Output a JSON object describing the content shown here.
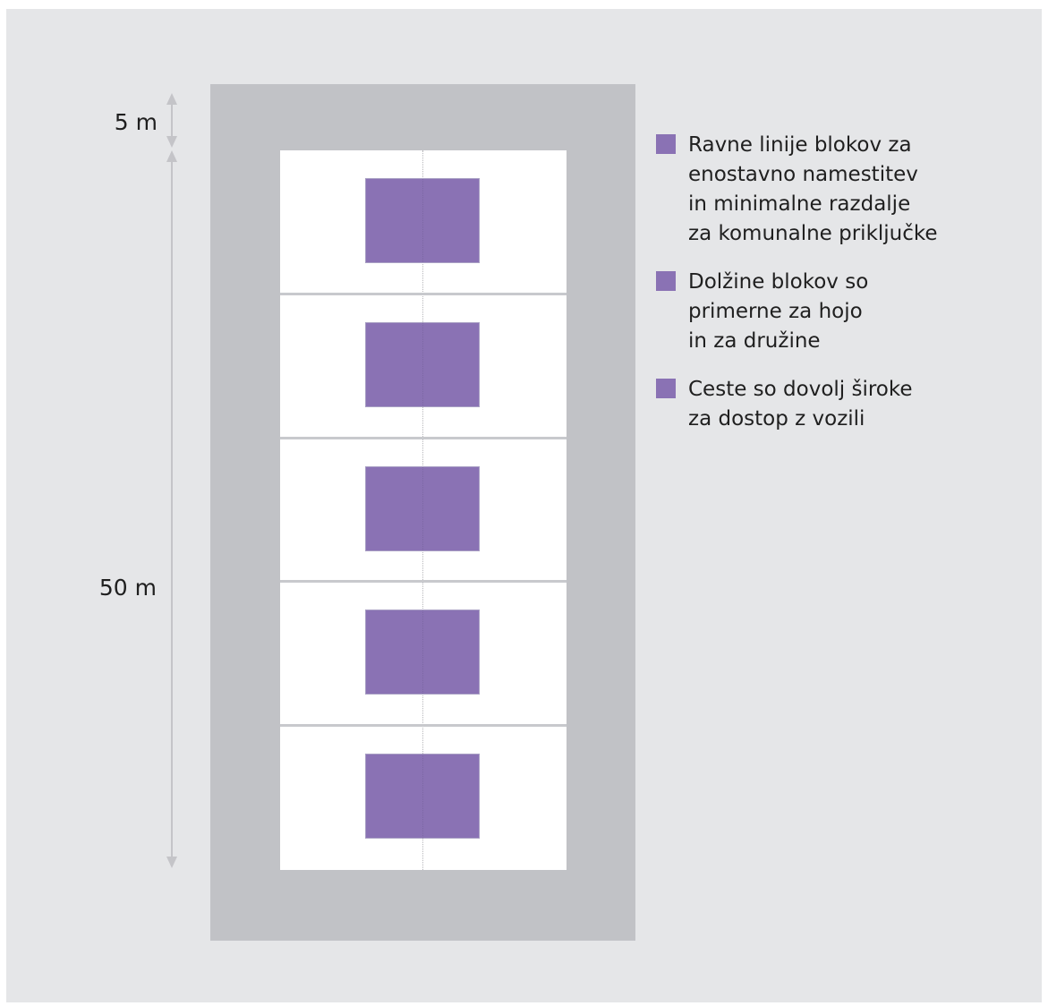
{
  "dimensions": {
    "road_width_label": "5 m",
    "block_length_label": "50 m"
  },
  "site": {
    "lot_count": 5
  },
  "legend": {
    "items": [
      {
        "text": "Ravne linije blokov za\nenostavno namestitev\nin minimalne razdalje\nza komunalne priključke"
      },
      {
        "text": "Dolžine blokov so\nprimerne za hojo\nin za družine"
      },
      {
        "text": "Ceste so dovolj široke\nza dostop z vozili"
      }
    ]
  },
  "colors": {
    "background": "#e5e6e8",
    "road": "#c1c2c6",
    "lot": "#ffffff",
    "building": "#8a72b4",
    "dimension_line": "#c4c4c8"
  }
}
